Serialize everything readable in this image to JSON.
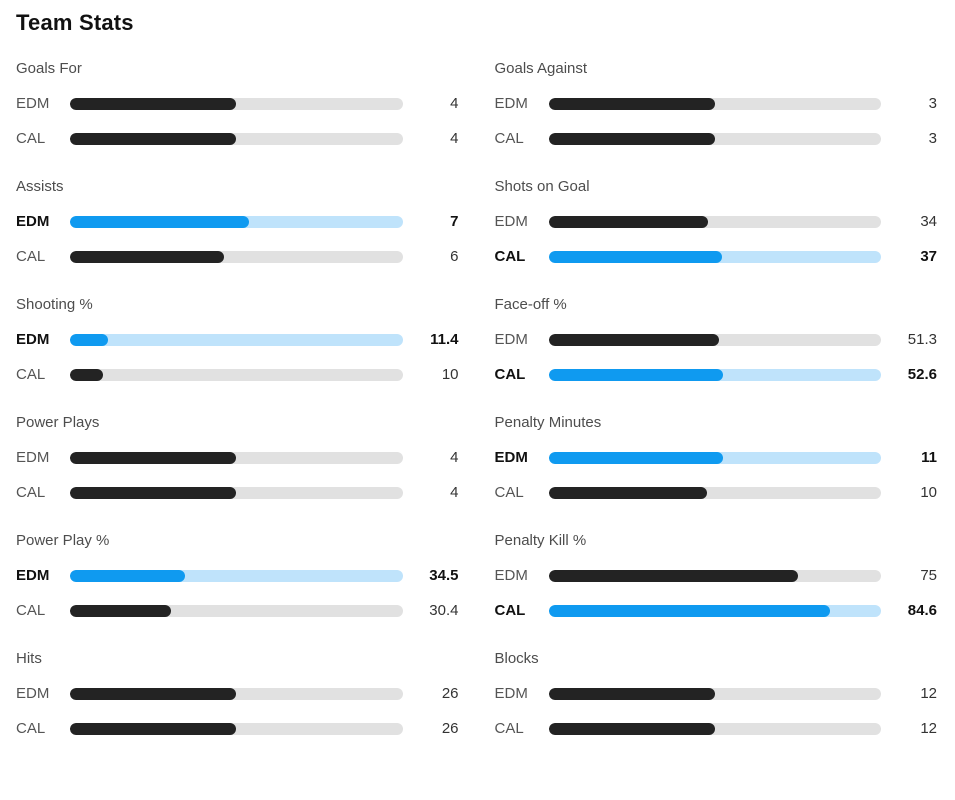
{
  "page": {
    "title": "Team Stats"
  },
  "colors": {
    "bar_dark": "#232323",
    "bar_blue": "#0f9af0",
    "track_gray": "#e1e1e1",
    "track_light_blue": "#bfe3fb",
    "text_gray": "#4d4d4d"
  },
  "chart_data": {
    "type": "bar",
    "title": "Team Stats",
    "teams": [
      "EDM",
      "CAL"
    ],
    "note": "fill_pct is the rendered bar length as percent of track; highlight marks the leading team (blue bold)",
    "groups": [
      {
        "title": "Goals For",
        "rows": [
          {
            "team": "EDM",
            "value": "4",
            "fill_pct": 50,
            "highlight": false
          },
          {
            "team": "CAL",
            "value": "4",
            "fill_pct": 50,
            "highlight": false
          }
        ]
      },
      {
        "title": "Goals Against",
        "rows": [
          {
            "team": "EDM",
            "value": "3",
            "fill_pct": 50,
            "highlight": false
          },
          {
            "team": "CAL",
            "value": "3",
            "fill_pct": 50,
            "highlight": false
          }
        ]
      },
      {
        "title": "Assists",
        "rows": [
          {
            "team": "EDM",
            "value": "7",
            "fill_pct": 53.8,
            "highlight": true
          },
          {
            "team": "CAL",
            "value": "6",
            "fill_pct": 46.2,
            "highlight": false
          }
        ]
      },
      {
        "title": "Shots on Goal",
        "rows": [
          {
            "team": "EDM",
            "value": "34",
            "fill_pct": 47.9,
            "highlight": false
          },
          {
            "team": "CAL",
            "value": "37",
            "fill_pct": 52.1,
            "highlight": true
          }
        ]
      },
      {
        "title": "Shooting %",
        "rows": [
          {
            "team": "EDM",
            "value": "11.4",
            "fill_pct": 11.4,
            "highlight": true
          },
          {
            "team": "CAL",
            "value": "10",
            "fill_pct": 10,
            "highlight": false
          }
        ]
      },
      {
        "title": "Face-off %",
        "rows": [
          {
            "team": "EDM",
            "value": "51.3",
            "fill_pct": 51.3,
            "highlight": false
          },
          {
            "team": "CAL",
            "value": "52.6",
            "fill_pct": 52.6,
            "highlight": true
          }
        ]
      },
      {
        "title": "Power Plays",
        "rows": [
          {
            "team": "EDM",
            "value": "4",
            "fill_pct": 50,
            "highlight": false
          },
          {
            "team": "CAL",
            "value": "4",
            "fill_pct": 50,
            "highlight": false
          }
        ]
      },
      {
        "title": "Penalty Minutes",
        "rows": [
          {
            "team": "EDM",
            "value": "11",
            "fill_pct": 52.4,
            "highlight": true
          },
          {
            "team": "CAL",
            "value": "10",
            "fill_pct": 47.6,
            "highlight": false
          }
        ]
      },
      {
        "title": "Power Play %",
        "rows": [
          {
            "team": "EDM",
            "value": "34.5",
            "fill_pct": 34.5,
            "highlight": true
          },
          {
            "team": "CAL",
            "value": "30.4",
            "fill_pct": 30.4,
            "highlight": false
          }
        ]
      },
      {
        "title": "Penalty Kill %",
        "rows": [
          {
            "team": "EDM",
            "value": "75",
            "fill_pct": 75,
            "highlight": false
          },
          {
            "team": "CAL",
            "value": "84.6",
            "fill_pct": 84.6,
            "highlight": true
          }
        ]
      },
      {
        "title": "Hits",
        "rows": [
          {
            "team": "EDM",
            "value": "26",
            "fill_pct": 50,
            "highlight": false
          },
          {
            "team": "CAL",
            "value": "26",
            "fill_pct": 50,
            "highlight": false
          }
        ]
      },
      {
        "title": "Blocks",
        "rows": [
          {
            "team": "EDM",
            "value": "12",
            "fill_pct": 50,
            "highlight": false
          },
          {
            "team": "CAL",
            "value": "12",
            "fill_pct": 50,
            "highlight": false
          }
        ]
      }
    ]
  }
}
